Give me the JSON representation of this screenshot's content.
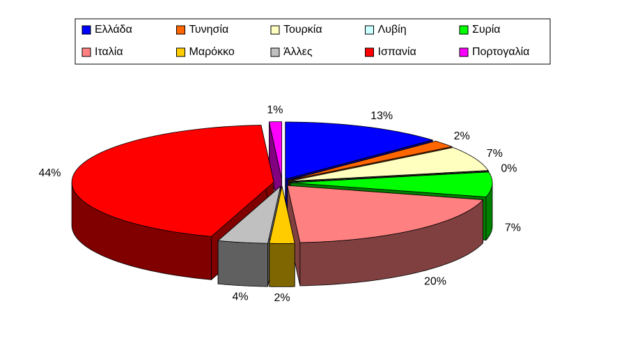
{
  "chart_data": {
    "type": "pie3d",
    "categories": [
      "Ελλάδα",
      "Τυνησία",
      "Τουρκία",
      "Λυβίη",
      "Συρία",
      "Ιταλία",
      "Μαρόκκο",
      "Άλλες",
      "Ισπανία",
      "Πορτογαλία"
    ],
    "values": [
      13,
      2,
      7,
      0,
      7,
      20,
      2,
      4,
      44,
      1
    ],
    "value_labels": [
      "13%",
      "2%",
      "7%",
      "0%",
      "7%",
      "20%",
      "2%",
      "4%",
      "44%",
      "1%"
    ],
    "colors": [
      "#0000ff",
      "#ff6600",
      "#ffffc0",
      "#ccffff",
      "#00ff00",
      "#ff8080",
      "#ffcc00",
      "#c0c0c0",
      "#ff0000",
      "#ff00ff"
    ],
    "legend": "top"
  }
}
